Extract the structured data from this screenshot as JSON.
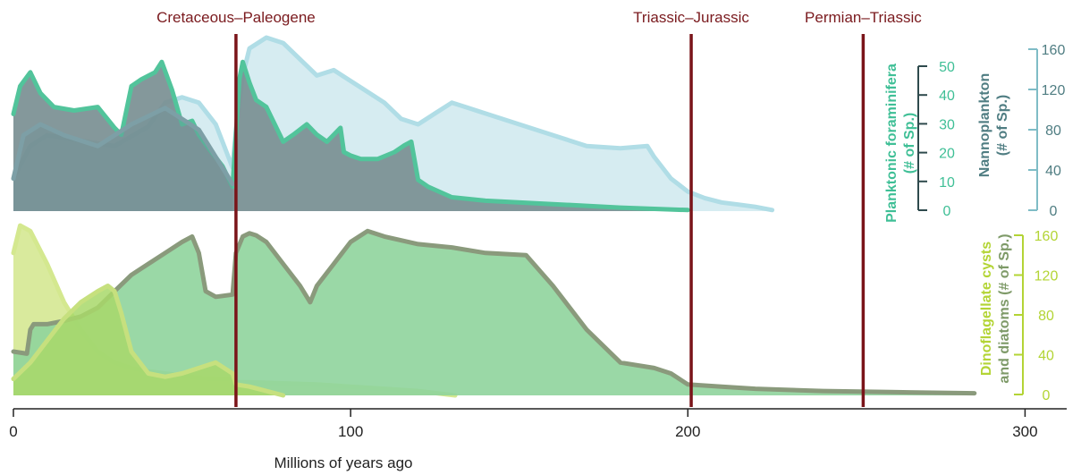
{
  "chart_data": {
    "type": "area",
    "xlabel": "Millions of years ago",
    "x_ticks": [
      "0",
      "100",
      "200",
      "300"
    ],
    "xlim": [
      0,
      315
    ],
    "events": [
      {
        "label": "Cretaceous–Paleogene",
        "x": 66
      },
      {
        "label": "Triassic–Jurassic",
        "x": 201
      },
      {
        "label": "Permian–Triassic",
        "x": 252
      }
    ],
    "colors": {
      "event_line": "#7a1419",
      "event_text": "#7a1a1e",
      "foram": "#3fbf96",
      "nanno_axis": "#4f7d82",
      "nanno_axis_line": "#7fbcc6",
      "dino": "#b3d435",
      "diatom": "#7e9a68",
      "axis": "#222222"
    },
    "axes": [
      {
        "id": "foraminifera",
        "title_lines": [
          "Planktonic foraminifera",
          "(# of Sp.)"
        ],
        "ticks": [
          "0",
          "10",
          "20",
          "30",
          "40",
          "50"
        ],
        "ylim": [
          0,
          50
        ],
        "color": "#3fbf96"
      },
      {
        "id": "nannoplankton",
        "title_lines": [
          "Nannoplankton",
          "(# of Sp.)"
        ],
        "ticks": [
          "0",
          "40",
          "80",
          "120",
          "160"
        ],
        "ylim": [
          0,
          160
        ],
        "color": "#4f7d82"
      },
      {
        "id": "dino_diatoms",
        "title_lines": [
          "Dinoflagellate cysts",
          "and diatoms (# of Sp.)"
        ],
        "ticks": [
          "0",
          "40",
          "80",
          "120",
          "160"
        ],
        "ylim": [
          0,
          160
        ],
        "color": "#b3d435"
      }
    ],
    "series": [
      {
        "panel": "top",
        "axis": "nannoplankton",
        "fill": "#cfe9ef",
        "stroke": "#b0dde6",
        "opacity": 0.85,
        "x": [
          0,
          5,
          10,
          20,
          30,
          40,
          45,
          50,
          55,
          60,
          65,
          66,
          68,
          70,
          75,
          80,
          85,
          90,
          95,
          100,
          105,
          110,
          115,
          120,
          125,
          130,
          135,
          140,
          150,
          160,
          170,
          180,
          188,
          190,
          195,
          200,
          205,
          210,
          215,
          220,
          225
        ],
        "y": [
          30,
          60,
          70,
          65,
          60,
          78,
          100,
          105,
          100,
          80,
          40,
          75,
          125,
          150,
          160,
          155,
          140,
          125,
          130,
          120,
          110,
          100,
          85,
          80,
          90,
          100,
          95,
          90,
          80,
          70,
          60,
          58,
          60,
          50,
          30,
          18,
          12,
          8,
          6,
          4,
          1
        ]
      },
      {
        "panel": "top",
        "axis": "foraminifera",
        "fill": "#7a8f93",
        "stroke": "#52c49b",
        "opacity": 0.92,
        "x": [
          0,
          2,
          5,
          8,
          12,
          18,
          25,
          30,
          32,
          35,
          38,
          42,
          44,
          47,
          50,
          53,
          55,
          58,
          62,
          65,
          66,
          67,
          68,
          70,
          72,
          75,
          80,
          83,
          87,
          90,
          93,
          95,
          97,
          98,
          100,
          103,
          108,
          113,
          116,
          118,
          120,
          123,
          130,
          140,
          160,
          180,
          200
        ],
        "y": [
          28,
          36,
          40,
          34,
          30,
          29,
          30,
          24,
          22,
          36,
          38,
          40,
          43,
          35,
          25,
          26,
          22,
          18,
          13,
          7,
          22,
          38,
          43,
          37,
          32,
          30,
          20,
          22,
          25,
          22,
          20,
          22,
          24,
          17,
          16,
          15,
          15,
          17,
          19,
          20,
          9,
          7,
          4,
          3,
          2,
          1,
          0.3
        ]
      },
      {
        "panel": "top",
        "axis": "nannoplankton",
        "fill": "#6b8e95",
        "stroke": "#7d9fa6",
        "opacity": 0.35,
        "x": [
          0,
          3,
          8,
          15,
          25,
          35,
          45,
          55,
          65
        ],
        "y": [
          30,
          70,
          80,
          70,
          60,
          80,
          95,
          75,
          25
        ]
      },
      {
        "panel": "bottom",
        "axis": "dino_diatoms",
        "fill": "#d2e68c",
        "stroke": "#d4e88f",
        "opacity": 0.85,
        "x": [
          0,
          2,
          5,
          10,
          15,
          20,
          25,
          30,
          35,
          40,
          45,
          50,
          55,
          60,
          65,
          66,
          70,
          80,
          90,
          100,
          110,
          120,
          131
        ],
        "y": [
          130,
          155,
          150,
          120,
          85,
          60,
          40,
          30,
          25,
          22,
          20,
          18,
          16,
          15,
          15,
          12,
          12,
          11,
          10,
          8,
          6,
          4,
          0
        ]
      },
      {
        "panel": "bottom",
        "axis": "dino_diatoms",
        "fill": "#8fd49c",
        "stroke": "#8a9a7c",
        "opacity": 0.9,
        "x": [
          0,
          4,
          5,
          6,
          10,
          15,
          20,
          25,
          30,
          35,
          40,
          45,
          50,
          53,
          55,
          57,
          60,
          65,
          66,
          68,
          70,
          72,
          75,
          80,
          85,
          88,
          90,
          95,
          100,
          105,
          110,
          120,
          130,
          140,
          152,
          160,
          170,
          180,
          190,
          195,
          200,
          210,
          220,
          240,
          260,
          285
        ],
        "y": [
          40,
          38,
          60,
          65,
          65,
          68,
          72,
          80,
          95,
          110,
          120,
          130,
          140,
          145,
          130,
          95,
          90,
          92,
          130,
          145,
          148,
          146,
          140,
          120,
          100,
          85,
          100,
          120,
          140,
          150,
          145,
          138,
          135,
          130,
          128,
          100,
          60,
          30,
          25,
          20,
          10,
          8,
          6,
          4,
          3,
          2
        ]
      },
      {
        "panel": "bottom",
        "axis": "dino_diatoms",
        "fill": "#a8d86a",
        "stroke": "#c6e07e",
        "opacity": 0.85,
        "x": [
          0,
          5,
          10,
          15,
          20,
          25,
          28,
          30,
          32,
          35,
          40,
          45,
          50,
          55,
          60,
          65,
          66,
          70,
          80
        ],
        "y": [
          15,
          30,
          50,
          70,
          85,
          95,
          100,
          95,
          75,
          40,
          20,
          17,
          20,
          25,
          30,
          20,
          10,
          8,
          0
        ]
      }
    ]
  }
}
